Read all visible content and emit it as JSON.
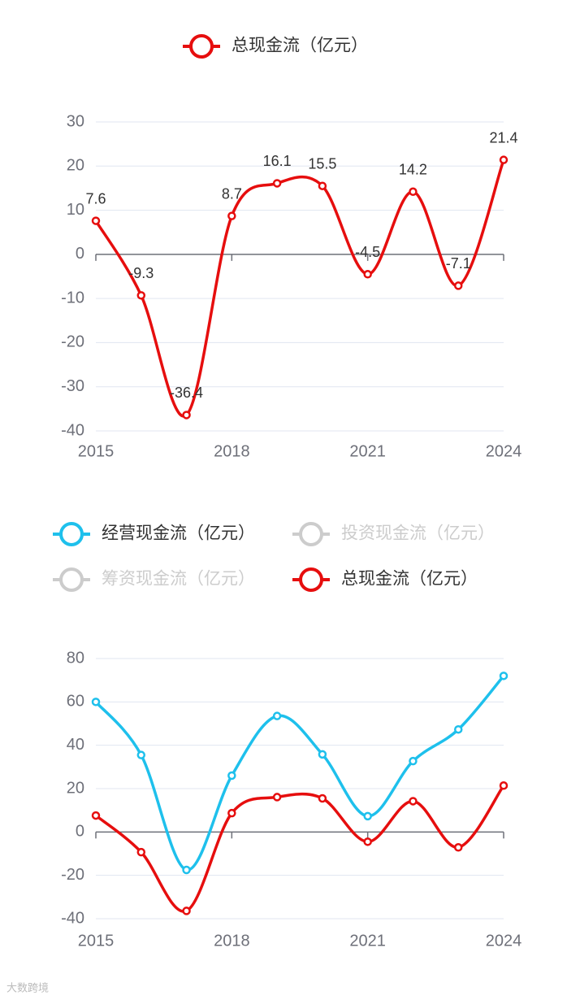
{
  "chart_data": [
    {
      "type": "line",
      "x": [
        2015,
        2016,
        2017,
        2018,
        2019,
        2020,
        2021,
        2022,
        2023,
        2024
      ],
      "xlim": [
        2015,
        2024
      ],
      "xticks": [
        2015,
        2018,
        2021,
        2024
      ],
      "ylim": [
        -40,
        30
      ],
      "yticks": [
        -40,
        -30,
        -20,
        -10,
        0,
        10,
        20,
        30
      ],
      "grid": true,
      "smooth": true,
      "data_labels": true,
      "series": [
        {
          "name": "总现金流（亿元）",
          "color": "#e60e0e",
          "visible": true,
          "values": [
            7.6,
            -9.3,
            -36.4,
            8.7,
            16.1,
            15.5,
            -4.5,
            14.2,
            -7.1,
            21.4
          ]
        }
      ]
    },
    {
      "type": "line",
      "x": [
        2015,
        2016,
        2017,
        2018,
        2019,
        2020,
        2021,
        2022,
        2023,
        2024
      ],
      "xlim": [
        2015,
        2024
      ],
      "xticks": [
        2015,
        2018,
        2021,
        2024
      ],
      "ylim": [
        -40,
        80
      ],
      "yticks": [
        -40,
        -20,
        0,
        20,
        40,
        60,
        80
      ],
      "grid": true,
      "smooth": true,
      "data_labels": false,
      "series": [
        {
          "name": "经营现金流（亿元）",
          "color": "#1ec0ec",
          "visible": true,
          "values": [
            60,
            35.5,
            -17.5,
            26,
            53.5,
            35.8,
            7.3,
            32.7,
            47.3,
            72
          ]
        },
        {
          "name": "投资现金流（亿元）",
          "color": "#cccccc",
          "visible": false,
          "values": [
            null,
            null,
            null,
            null,
            null,
            null,
            null,
            null,
            null,
            null
          ]
        },
        {
          "name": "筹资现金流（亿元）",
          "color": "#cccccc",
          "visible": false,
          "values": [
            null,
            null,
            null,
            null,
            null,
            null,
            null,
            null,
            null,
            null
          ]
        },
        {
          "name": "总现金流（亿元）",
          "color": "#e60e0e",
          "visible": true,
          "values": [
            7.6,
            -9.3,
            -36.4,
            8.7,
            16.1,
            15.5,
            -4.5,
            14.2,
            -7.1,
            21.4
          ]
        }
      ]
    }
  ],
  "watermark": "大数跨境"
}
